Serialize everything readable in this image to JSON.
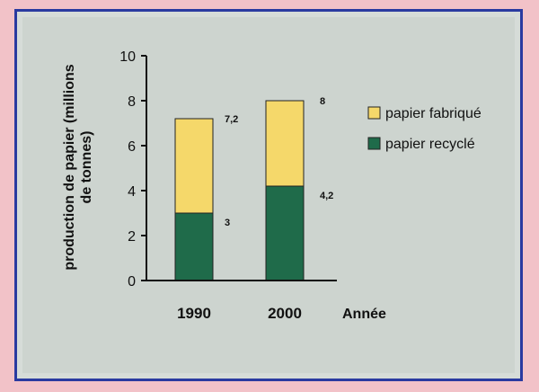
{
  "chart_data": {
    "type": "bar",
    "stacked": false,
    "overlay": true,
    "categories": [
      "1990",
      "2000"
    ],
    "series": [
      {
        "name": "papier fabriqué",
        "values": [
          7.2,
          8
        ],
        "color": "#f5d86a"
      },
      {
        "name": "papier recyclé",
        "values": [
          3,
          4.2
        ],
        "color": "#1f6b4a"
      }
    ],
    "data_labels": {
      "papier fabriqué": [
        "7,2",
        "8"
      ],
      "papier recyclé": [
        "3",
        "4,2"
      ]
    },
    "xlabel": "Année",
    "ylabel_line1": "production de papier (millions",
    "ylabel_line2": "de tonnes)",
    "ylim": [
      0,
      10
    ],
    "yticks": [
      "0",
      "2",
      "4",
      "6",
      "8",
      "10"
    ],
    "legend_position": "right"
  },
  "colors": {
    "background": "#f2c2c8",
    "frame": "#2a3aa0",
    "panel": "#cdd4cf"
  }
}
